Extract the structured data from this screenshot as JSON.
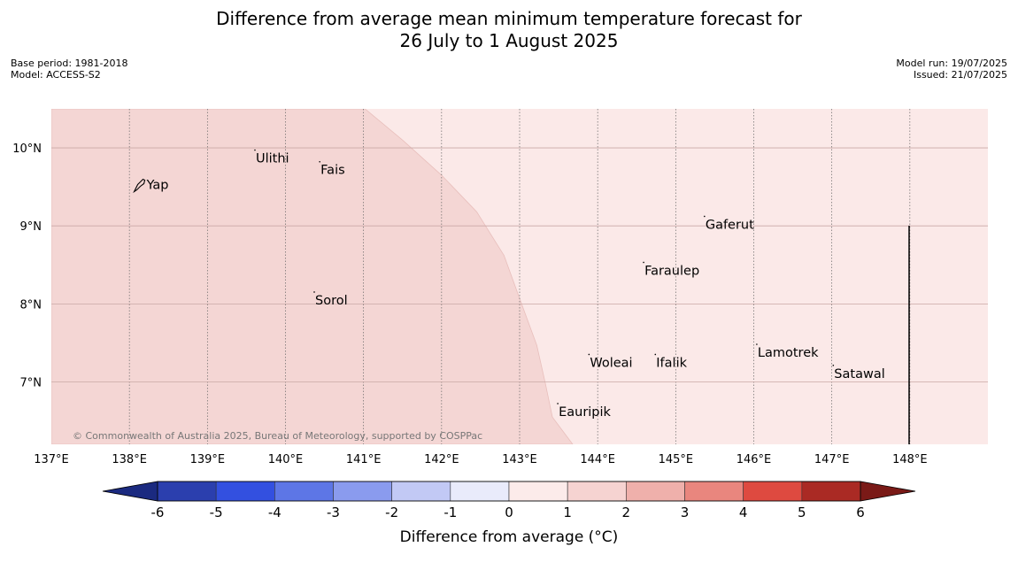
{
  "title": {
    "line1": "Difference from average mean minimum temperature forecast for",
    "line2": "26 July to 1 August 2025"
  },
  "meta_left": {
    "base_period": "Base period: 1981-2018",
    "model": "Model: ACCESS-S2"
  },
  "meta_right": {
    "model_run": "Model run: 19/07/2025",
    "issued": "Issued: 21/07/2025"
  },
  "map": {
    "lon_min": 137,
    "lon_max": 149,
    "lat_min": 6.2,
    "lat_max": 10.5,
    "lon_ticks": [
      {
        "value": 137,
        "label": "137°E"
      },
      {
        "value": 138,
        "label": "138°E"
      },
      {
        "value": 139,
        "label": "139°E"
      },
      {
        "value": 140,
        "label": "140°E"
      },
      {
        "value": 141,
        "label": "141°E"
      },
      {
        "value": 142,
        "label": "142°E"
      },
      {
        "value": 143,
        "label": "143°E"
      },
      {
        "value": 144,
        "label": "144°E"
      },
      {
        "value": 145,
        "label": "145°E"
      },
      {
        "value": 146,
        "label": "146°E"
      },
      {
        "value": 147,
        "label": "147°E"
      },
      {
        "value": 148,
        "label": "148°E"
      }
    ],
    "lat_ticks": [
      {
        "value": 10,
        "label": "10°N"
      },
      {
        "value": 9,
        "label": "9°N"
      },
      {
        "value": 8,
        "label": "8°N"
      },
      {
        "value": 7,
        "label": "7°N"
      }
    ],
    "regions": [
      {
        "category": "1 to 2",
        "color": "#f4d6d4",
        "boundary": [
          [
            141.02,
            10.5
          ],
          [
            141.5,
            10.1
          ],
          [
            142.0,
            9.65
          ],
          [
            142.45,
            9.18
          ],
          [
            142.8,
            8.62
          ],
          [
            143.0,
            8.07
          ],
          [
            143.22,
            7.47
          ],
          [
            143.33,
            6.98
          ],
          [
            143.42,
            6.55
          ],
          [
            143.68,
            6.2
          ]
        ]
      },
      {
        "category": "0 to 1",
        "color": "#fbe9e8"
      }
    ],
    "places": [
      {
        "name": "Yap",
        "lon": 138.22,
        "lat": 9.53
      },
      {
        "name": "Ulithi",
        "lon": 139.62,
        "lat": 9.87
      },
      {
        "name": "Fais",
        "lon": 140.45,
        "lat": 9.72
      },
      {
        "name": "Sorol",
        "lon": 140.38,
        "lat": 8.05
      },
      {
        "name": "Gaferut",
        "lon": 145.38,
        "lat": 9.02
      },
      {
        "name": "Faraulep",
        "lon": 144.6,
        "lat": 8.43
      },
      {
        "name": "Woleai",
        "lon": 143.9,
        "lat": 7.25
      },
      {
        "name": "Ifalik",
        "lon": 144.75,
        "lat": 7.25
      },
      {
        "name": "Lamotrek",
        "lon": 146.05,
        "lat": 7.38
      },
      {
        "name": "Satawal",
        "lon": 147.03,
        "lat": 7.11
      },
      {
        "name": "Eauripik",
        "lon": 143.5,
        "lat": 6.62
      }
    ],
    "copyright": "© Commonwealth of Australia 2025, Bureau of Meteorology, supported by COSPPac"
  },
  "colorbar": {
    "label": "Difference from average (°C)",
    "ticks": [
      "-6",
      "-5",
      "-4",
      "-3",
      "-2",
      "-1",
      "0",
      "1",
      "2",
      "3",
      "4",
      "5",
      "6"
    ],
    "low_extend_color": "#1b2a80",
    "high_extend_color": "#7a1a17",
    "colors": [
      "#2b3fae",
      "#3350e0",
      "#5d76e6",
      "#8a9bee",
      "#c2c9f5",
      "#e9ebfb",
      "#fcebea",
      "#f6d3d1",
      "#efb0ab",
      "#e9867e",
      "#de4a40",
      "#aa2a24"
    ]
  }
}
